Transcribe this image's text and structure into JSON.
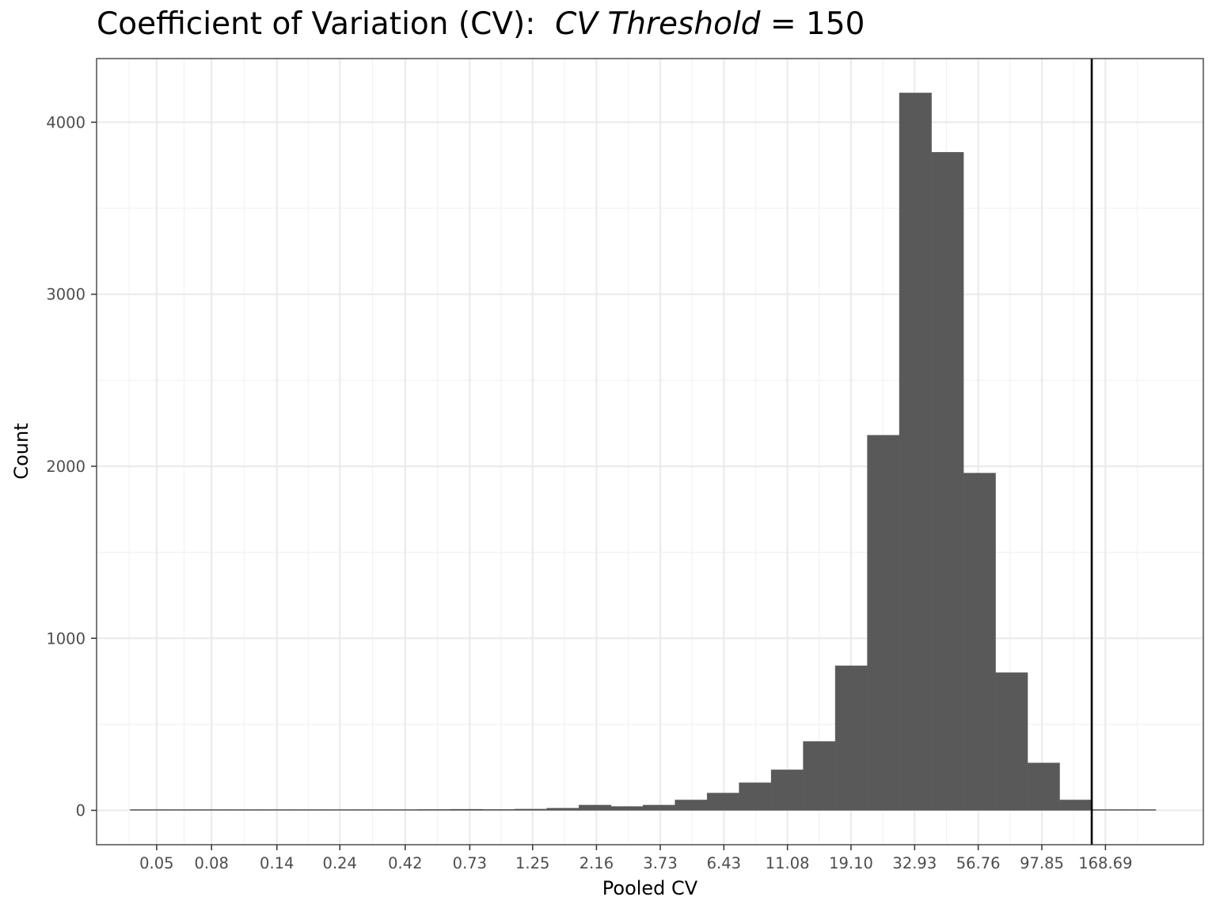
{
  "chart_data": {
    "type": "bar",
    "title": {
      "prefix": "Coefficient of Variation (CV):",
      "threshold_label": "CV Threshold",
      "equals": "=",
      "threshold_value": "150"
    },
    "xlabel": "Pooled CV",
    "ylabel": "Count",
    "x_scale": "log",
    "threshold": 150,
    "x_ticks": [
      {
        "value": 0.05,
        "label": "0.05"
      },
      {
        "value": 0.08,
        "label": "0.08"
      },
      {
        "value": 0.14,
        "label": "0.14"
      },
      {
        "value": 0.24,
        "label": "0.24"
      },
      {
        "value": 0.42,
        "label": "0.42"
      },
      {
        "value": 0.73,
        "label": "0.73"
      },
      {
        "value": 1.25,
        "label": "1.25"
      },
      {
        "value": 2.16,
        "label": "2.16"
      },
      {
        "value": 3.73,
        "label": "3.73"
      },
      {
        "value": 6.43,
        "label": "6.43"
      },
      {
        "value": 11.08,
        "label": "11.08"
      },
      {
        "value": 19.1,
        "label": "19.10"
      },
      {
        "value": 32.93,
        "label": "32.93"
      },
      {
        "value": 56.76,
        "label": "56.76"
      },
      {
        "value": 97.85,
        "label": "97.85"
      },
      {
        "value": 168.69,
        "label": "168.69"
      }
    ],
    "y_ticks": [
      0,
      1000,
      2000,
      3000,
      4000
    ],
    "ylim": [
      -200,
      4370
    ],
    "xlim": [
      0.0299,
      390
    ],
    "bins": [
      {
        "start": 0.0399,
        "end": 0.0525,
        "count": 1
      },
      {
        "start": 0.0525,
        "end": 0.0691,
        "count": 1
      },
      {
        "start": 0.0691,
        "end": 0.0909,
        "count": 1
      },
      {
        "start": 0.0909,
        "end": 0.1196,
        "count": 0
      },
      {
        "start": 0.1196,
        "end": 0.1574,
        "count": 2
      },
      {
        "start": 0.1574,
        "end": 0.2071,
        "count": 2
      },
      {
        "start": 0.2071,
        "end": 0.2725,
        "count": 1
      },
      {
        "start": 0.2725,
        "end": 0.3585,
        "count": 2
      },
      {
        "start": 0.3585,
        "end": 0.4716,
        "count": 3
      },
      {
        "start": 0.4716,
        "end": 0.6205,
        "count": 5
      },
      {
        "start": 0.6205,
        "end": 0.8164,
        "count": 6
      },
      {
        "start": 0.8164,
        "end": 1.0742,
        "count": 5
      },
      {
        "start": 1.0742,
        "end": 1.4133,
        "count": 7
      },
      {
        "start": 1.4133,
        "end": 1.8595,
        "count": 12
      },
      {
        "start": 1.8595,
        "end": 2.4465,
        "count": 30
      },
      {
        "start": 2.4465,
        "end": 3.2189,
        "count": 22
      },
      {
        "start": 3.2189,
        "end": 4.2351,
        "count": 30
      },
      {
        "start": 4.2351,
        "end": 5.5721,
        "count": 60
      },
      {
        "start": 5.5721,
        "end": 7.3311,
        "count": 100
      },
      {
        "start": 7.3311,
        "end": 9.6455,
        "count": 160
      },
      {
        "start": 9.6455,
        "end": 12.69,
        "count": 235
      },
      {
        "start": 12.69,
        "end": 16.697,
        "count": 400
      },
      {
        "start": 16.697,
        "end": 21.968,
        "count": 840
      },
      {
        "start": 21.968,
        "end": 28.903,
        "count": 2180
      },
      {
        "start": 28.903,
        "end": 38.028,
        "count": 4170
      },
      {
        "start": 38.028,
        "end": 50.033,
        "count": 3825
      },
      {
        "start": 50.033,
        "end": 65.828,
        "count": 1960
      },
      {
        "start": 65.828,
        "end": 86.61,
        "count": 800
      },
      {
        "start": 86.61,
        "end": 113.95,
        "count": 275
      },
      {
        "start": 113.95,
        "end": 149.93,
        "count": 60
      },
      {
        "start": 149.93,
        "end": 197.26,
        "count": 4
      },
      {
        "start": 197.26,
        "end": 259.54,
        "count": 3
      }
    ]
  }
}
